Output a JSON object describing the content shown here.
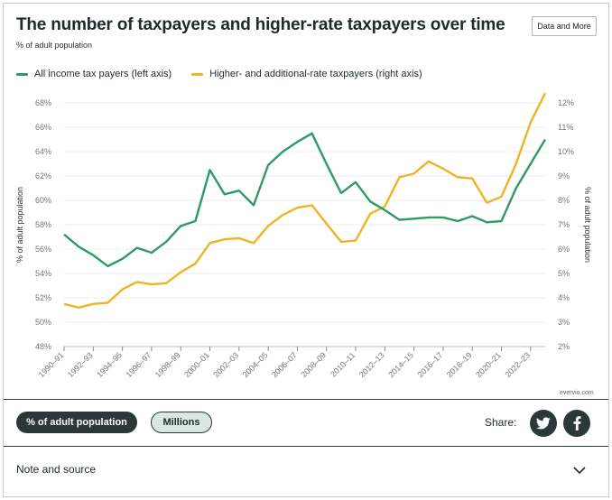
{
  "header": {
    "title": "The number of taxpayers and higher-rate taxpayers over time",
    "subtitle": "% of adult population",
    "data_button": "Data and More"
  },
  "legend": {
    "series1": "All income tax payers (left axis)",
    "series2": "Higher- and additional-rate taxpayers (right axis)"
  },
  "colors": {
    "series1": "#2e9a6a",
    "series2": "#f0b323",
    "dark": "#2c3838"
  },
  "attribution": "evervio.com",
  "controls": {
    "active_toggle": "% of adult population",
    "inactive_toggle": "Millions",
    "share_label": "Share:"
  },
  "footer": {
    "note_label": "Note and source"
  },
  "chart_data": {
    "type": "line",
    "title": "The number of taxpayers and higher-rate taxpayers over time",
    "subtitle": "% of adult population",
    "ylabel": "% of adult population",
    "y2label": "% of adult population",
    "ylim": [
      48,
      68
    ],
    "y2lim": [
      2,
      12
    ],
    "yticks": [
      "48%",
      "50%",
      "52%",
      "54%",
      "56%",
      "58%",
      "60%",
      "62%",
      "64%",
      "66%",
      "68%"
    ],
    "y2ticks": [
      "2%",
      "3%",
      "4%",
      "5%",
      "6%",
      "7%",
      "8%",
      "9%",
      "10%",
      "11%",
      "12%"
    ],
    "grid": true,
    "xtick_labels": [
      "1990–91",
      "1992–93",
      "1994–95",
      "1996–97",
      "1998–99",
      "2000–01",
      "2002–03",
      "2004–05",
      "2006–07",
      "2008–09",
      "2010–11",
      "2012–13",
      "2014–15",
      "2016–17",
      "2018–19",
      "2020–21",
      "2022–23"
    ],
    "x": [
      "1990–91",
      "1991–92",
      "1992–93",
      "1993–94",
      "1994–95",
      "1995–96",
      "1996–97",
      "1997–98",
      "1998–99",
      "1999–00",
      "2000–01",
      "2001–02",
      "2002–03",
      "2003–04",
      "2004–05",
      "2005–06",
      "2006–07",
      "2007–08",
      "2008–09",
      "2009–10",
      "2010–11",
      "2011–12",
      "2012–13",
      "2013–14",
      "2014–15",
      "2015–16",
      "2016–17",
      "2017–18",
      "2018–19",
      "2019–20",
      "2020–21",
      "2021–22",
      "2022–23",
      "2023–24"
    ],
    "series": [
      {
        "name": "All income tax payers (left axis)",
        "axis": "left",
        "values": [
          57.2,
          56.2,
          55.5,
          54.6,
          55.2,
          56.1,
          55.7,
          56.6,
          57.9,
          58.3,
          62.5,
          60.5,
          60.8,
          59.6,
          62.9,
          64.0,
          64.8,
          65.5,
          63.0,
          60.6,
          61.5,
          59.9,
          59.2,
          58.4,
          58.5,
          58.6,
          58.6,
          58.3,
          58.7,
          58.2,
          58.3,
          61.0,
          63.0,
          65.0
        ]
      },
      {
        "name": "Higher- and additional-rate taxpayers (right axis)",
        "axis": "right",
        "values": [
          3.75,
          3.6,
          3.75,
          3.8,
          4.35,
          4.65,
          4.55,
          4.6,
          5.05,
          5.4,
          6.25,
          6.4,
          6.45,
          6.25,
          6.95,
          7.4,
          7.7,
          7.8,
          7.05,
          6.3,
          6.35,
          7.45,
          7.75,
          8.95,
          9.1,
          9.6,
          9.3,
          8.95,
          8.9,
          7.9,
          8.15,
          9.5,
          11.2,
          12.4
        ]
      }
    ]
  }
}
